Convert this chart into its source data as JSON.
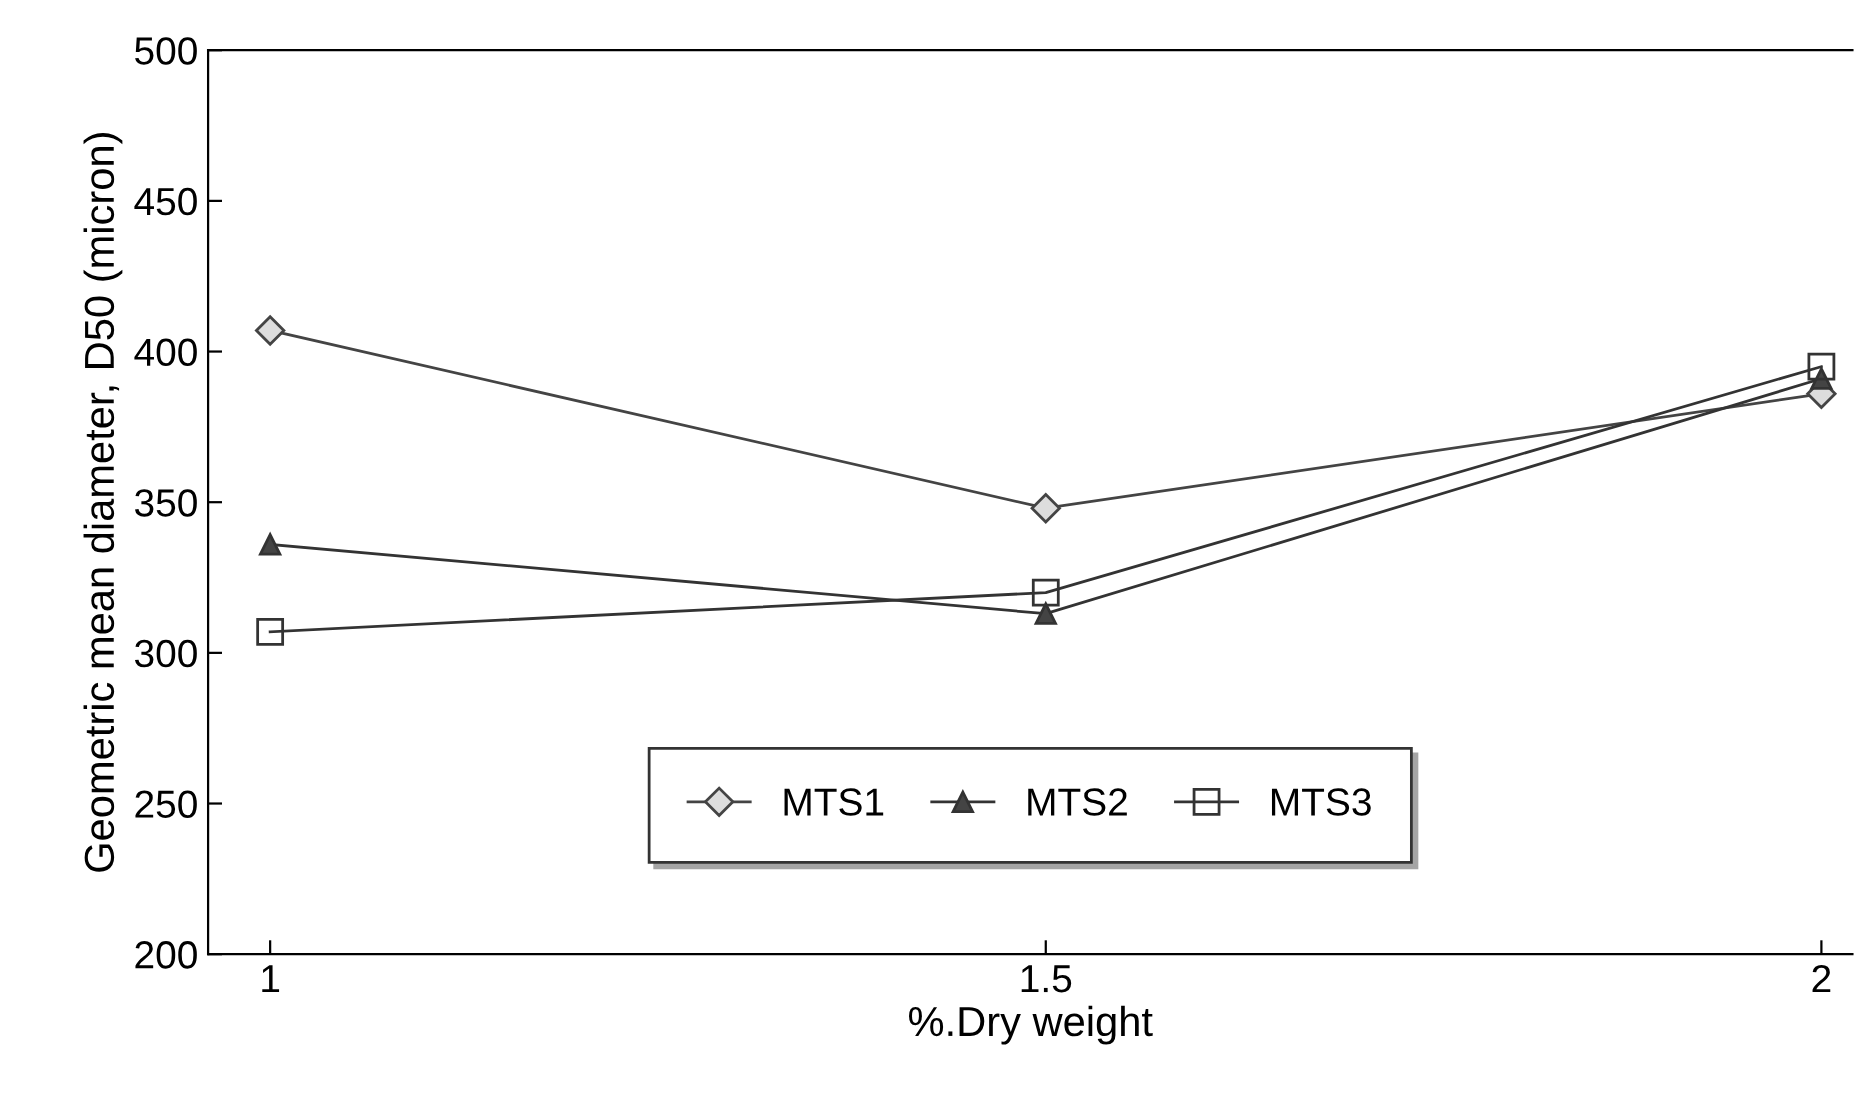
{
  "chart_data": {
    "type": "line",
    "xlabel": "%.Dry weight",
    "ylabel": "Geometric mean diameter, D50 (micron)",
    "x": [
      1,
      1.5,
      2
    ],
    "xlim": [
      0.96,
      2.02
    ],
    "xticks": [
      1,
      1.5,
      2
    ],
    "ylim": [
      200,
      500
    ],
    "yticks": [
      200,
      250,
      300,
      350,
      400,
      450,
      500
    ],
    "grid": false,
    "legend": "bottom",
    "series": [
      {
        "name": "MTS1",
        "color": "#444444",
        "marker": "diamond",
        "values": [
          407,
          348,
          386
        ]
      },
      {
        "name": "MTS2",
        "color": "#333333",
        "marker": "triangle",
        "values": [
          336,
          313,
          391
        ]
      },
      {
        "name": "MTS3",
        "color": "#333333",
        "marker": "square",
        "values": [
          307,
          320,
          395
        ]
      }
    ]
  }
}
